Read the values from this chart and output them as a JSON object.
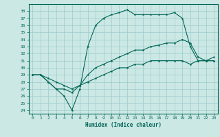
{
  "title": "",
  "xlabel": "Humidex (Indice chaleur)",
  "ylabel": "",
  "bg_color": "#cce8e4",
  "grid_color": "#99cccc",
  "line_color": "#006655",
  "xlim": [
    -0.5,
    23.5
  ],
  "ylim": [
    23.5,
    39.0
  ],
  "xticks": [
    0,
    1,
    2,
    3,
    4,
    5,
    6,
    7,
    8,
    9,
    10,
    11,
    12,
    13,
    14,
    15,
    16,
    17,
    18,
    19,
    20,
    21,
    22,
    23
  ],
  "yticks": [
    24,
    25,
    26,
    27,
    28,
    29,
    30,
    31,
    32,
    33,
    34,
    35,
    36,
    37,
    38
  ],
  "line1_x": [
    0,
    1,
    2,
    3,
    4,
    5,
    6,
    7,
    8,
    9,
    10,
    11,
    12,
    13,
    14,
    15,
    16,
    17,
    18,
    19,
    20,
    21,
    22,
    23
  ],
  "line1_y": [
    29,
    29,
    28,
    27,
    26,
    24,
    27,
    33,
    36,
    37,
    37.5,
    37.8,
    38.2,
    37.5,
    37.5,
    37.5,
    37.5,
    37.5,
    37.8,
    37,
    33,
    31,
    31,
    31
  ],
  "line2_x": [
    0,
    1,
    2,
    3,
    4,
    5,
    6,
    7,
    8,
    9,
    10,
    11,
    12,
    13,
    14,
    15,
    16,
    17,
    18,
    19,
    20,
    21,
    22,
    23
  ],
  "line2_y": [
    29,
    29,
    28,
    27,
    27,
    26.5,
    27.5,
    29,
    30,
    30.5,
    31,
    31.5,
    32,
    32.5,
    32.5,
    33,
    33.2,
    33.5,
    33.5,
    34,
    33.5,
    31.5,
    31,
    31
  ],
  "line3_x": [
    0,
    1,
    2,
    3,
    4,
    5,
    6,
    7,
    8,
    9,
    10,
    11,
    12,
    13,
    14,
    15,
    16,
    17,
    18,
    19,
    20,
    21,
    22,
    23
  ],
  "line3_y": [
    29,
    29,
    28.5,
    28,
    27.5,
    27,
    27.5,
    28,
    28.5,
    29,
    29.5,
    30,
    30,
    30.5,
    30.5,
    31,
    31,
    31,
    31,
    31,
    30.5,
    31,
    31,
    31.5
  ]
}
